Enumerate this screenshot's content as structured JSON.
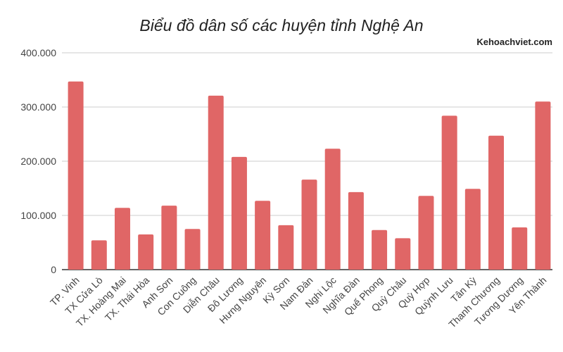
{
  "chart_data": {
    "type": "bar",
    "title": "Biểu đồ dân số các huyện tỉnh Nghệ An",
    "watermark": "Kehoachviet.com",
    "xlabel": "",
    "ylabel": "",
    "ylim": [
      0,
      400000
    ],
    "yticks": [
      0,
      100000,
      200000,
      300000,
      400000
    ],
    "ytick_labels": [
      "0",
      "100.000",
      "200.000",
      "300.000",
      "400.000"
    ],
    "grid": true,
    "bar_color": "#e06666",
    "categories": [
      "TP. Vinh",
      "TX Cửa Lò",
      "TX. Hoàng Mai",
      "TX. Thái Hòa",
      "Anh Sơn",
      "Con Cuông",
      "Diễn Châu",
      "Đô Lương",
      "Hưng Nguyên",
      "Kỳ Sơn",
      "Nam Đàn",
      "Nghi Lộc",
      "Nghĩa Đàn",
      "Quế Phong",
      "Quỳ Châu",
      "Quỳ Hợp",
      "Quỳnh Lưu",
      "Tân Kỳ",
      "Thanh Chương",
      "Tương Dương",
      "Yên Thành"
    ],
    "values": [
      347000,
      54000,
      114000,
      65000,
      118000,
      75000,
      321000,
      208000,
      127000,
      82000,
      166000,
      223000,
      143000,
      73000,
      58000,
      136000,
      284000,
      149000,
      247000,
      78000,
      310000
    ]
  }
}
